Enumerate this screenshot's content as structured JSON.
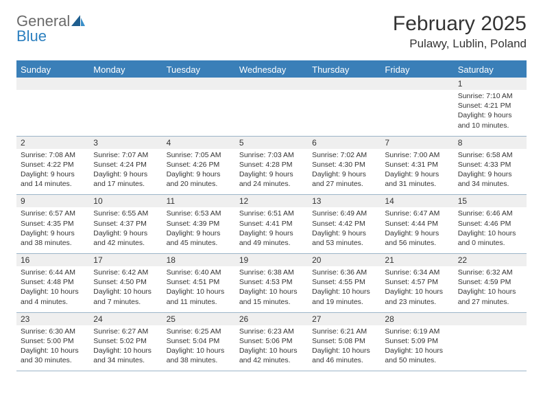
{
  "brand": {
    "part1": "General",
    "part2": "Blue"
  },
  "title": "February 2025",
  "location": "Pulawy, Lublin, Poland",
  "colors": {
    "header_bar": "#3a7fb8",
    "number_strip_bg": "#efefef",
    "row_border": "#9bb4c8",
    "text": "#333333",
    "logo_gray": "#6a6a6a",
    "logo_blue": "#2b7fbf"
  },
  "day_names": [
    "Sunday",
    "Monday",
    "Tuesday",
    "Wednesday",
    "Thursday",
    "Friday",
    "Saturday"
  ],
  "weeks": [
    {
      "nums": [
        "",
        "",
        "",
        "",
        "",
        "",
        "1"
      ],
      "cells": [
        "",
        "",
        "",
        "",
        "",
        "",
        "Sunrise: 7:10 AM\nSunset: 4:21 PM\nDaylight: 9 hours and 10 minutes."
      ]
    },
    {
      "nums": [
        "2",
        "3",
        "4",
        "5",
        "6",
        "7",
        "8"
      ],
      "cells": [
        "Sunrise: 7:08 AM\nSunset: 4:22 PM\nDaylight: 9 hours and 14 minutes.",
        "Sunrise: 7:07 AM\nSunset: 4:24 PM\nDaylight: 9 hours and 17 minutes.",
        "Sunrise: 7:05 AM\nSunset: 4:26 PM\nDaylight: 9 hours and 20 minutes.",
        "Sunrise: 7:03 AM\nSunset: 4:28 PM\nDaylight: 9 hours and 24 minutes.",
        "Sunrise: 7:02 AM\nSunset: 4:30 PM\nDaylight: 9 hours and 27 minutes.",
        "Sunrise: 7:00 AM\nSunset: 4:31 PM\nDaylight: 9 hours and 31 minutes.",
        "Sunrise: 6:58 AM\nSunset: 4:33 PM\nDaylight: 9 hours and 34 minutes."
      ]
    },
    {
      "nums": [
        "9",
        "10",
        "11",
        "12",
        "13",
        "14",
        "15"
      ],
      "cells": [
        "Sunrise: 6:57 AM\nSunset: 4:35 PM\nDaylight: 9 hours and 38 minutes.",
        "Sunrise: 6:55 AM\nSunset: 4:37 PM\nDaylight: 9 hours and 42 minutes.",
        "Sunrise: 6:53 AM\nSunset: 4:39 PM\nDaylight: 9 hours and 45 minutes.",
        "Sunrise: 6:51 AM\nSunset: 4:41 PM\nDaylight: 9 hours and 49 minutes.",
        "Sunrise: 6:49 AM\nSunset: 4:42 PM\nDaylight: 9 hours and 53 minutes.",
        "Sunrise: 6:47 AM\nSunset: 4:44 PM\nDaylight: 9 hours and 56 minutes.",
        "Sunrise: 6:46 AM\nSunset: 4:46 PM\nDaylight: 10 hours and 0 minutes."
      ]
    },
    {
      "nums": [
        "16",
        "17",
        "18",
        "19",
        "20",
        "21",
        "22"
      ],
      "cells": [
        "Sunrise: 6:44 AM\nSunset: 4:48 PM\nDaylight: 10 hours and 4 minutes.",
        "Sunrise: 6:42 AM\nSunset: 4:50 PM\nDaylight: 10 hours and 7 minutes.",
        "Sunrise: 6:40 AM\nSunset: 4:51 PM\nDaylight: 10 hours and 11 minutes.",
        "Sunrise: 6:38 AM\nSunset: 4:53 PM\nDaylight: 10 hours and 15 minutes.",
        "Sunrise: 6:36 AM\nSunset: 4:55 PM\nDaylight: 10 hours and 19 minutes.",
        "Sunrise: 6:34 AM\nSunset: 4:57 PM\nDaylight: 10 hours and 23 minutes.",
        "Sunrise: 6:32 AM\nSunset: 4:59 PM\nDaylight: 10 hours and 27 minutes."
      ]
    },
    {
      "nums": [
        "23",
        "24",
        "25",
        "26",
        "27",
        "28",
        ""
      ],
      "cells": [
        "Sunrise: 6:30 AM\nSunset: 5:00 PM\nDaylight: 10 hours and 30 minutes.",
        "Sunrise: 6:27 AM\nSunset: 5:02 PM\nDaylight: 10 hours and 34 minutes.",
        "Sunrise: 6:25 AM\nSunset: 5:04 PM\nDaylight: 10 hours and 38 minutes.",
        "Sunrise: 6:23 AM\nSunset: 5:06 PM\nDaylight: 10 hours and 42 minutes.",
        "Sunrise: 6:21 AM\nSunset: 5:08 PM\nDaylight: 10 hours and 46 minutes.",
        "Sunrise: 6:19 AM\nSunset: 5:09 PM\nDaylight: 10 hours and 50 minutes.",
        ""
      ]
    }
  ]
}
